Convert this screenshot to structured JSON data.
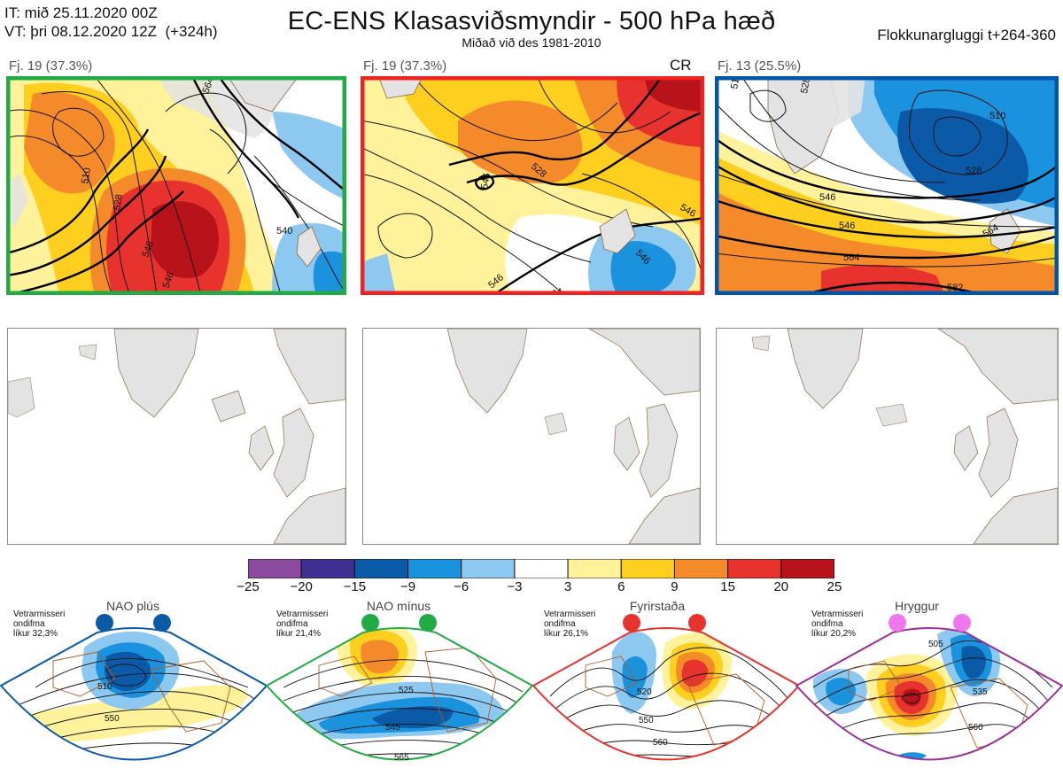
{
  "header": {
    "init_time": "IT: mið 25.11.2020 00Z",
    "valid_time": "VT: þri 08.12.2020 12Z  (+324h)",
    "title": "EC-ENS Klasasviðsmyndir - 500 hPa hæð",
    "subtitle": "Miðað við des 1981-2010",
    "window": "Flokkunargluggi t+264-360"
  },
  "panels": [
    {
      "label": "Fj. 19 (37.3%)",
      "tag": "",
      "frame_color": "#22aa44",
      "contour_labels": [
        "510",
        "528",
        "546",
        "546",
        "564",
        "540"
      ]
    },
    {
      "label": "Fj. 19 (37.3%)",
      "tag": "CR",
      "frame_color": "#ee2222",
      "contour_labels": [
        "528",
        "546",
        "546",
        "546",
        "564",
        "546"
      ]
    },
    {
      "label": "Fj. 13 (25.5%)",
      "tag": "",
      "frame_color": "#0055aa",
      "contour_labels": [
        "510",
        "528",
        "546",
        "546",
        "564",
        "510",
        "528",
        "564",
        "582"
      ]
    }
  ],
  "colorbar": {
    "ticks": [
      "−25",
      "−20",
      "−15",
      "−9",
      "−6",
      "−3",
      "3",
      "6",
      "9",
      "15",
      "20",
      "25"
    ],
    "colors": [
      "#8b4a9e",
      "#3f2f90",
      "#0a5aa8",
      "#1a92dd",
      "#8cc8ef",
      "#ffffff",
      "#fff29b",
      "#ffcf1f",
      "#f58a2a",
      "#e8322d",
      "#b8121a"
    ]
  },
  "regimes": [
    {
      "name": "NAO plús",
      "prob_lines": [
        "Vetrarmisseri",
        "ondifma",
        "líkur 32,3%"
      ],
      "color": "#0a5aa8",
      "contour_labels": [
        "510",
        "550"
      ]
    },
    {
      "name": "NAO mínus",
      "prob_lines": [
        "Vetrarmisseri",
        "ondifma",
        "líkur 21,4%"
      ],
      "color": "#22aa44",
      "contour_labels": [
        "525",
        "545",
        "565"
      ]
    },
    {
      "name": "Fyrirstaða",
      "prob_lines": [
        "Vetrarmisseri",
        "ondifma",
        "líkur 26,1%"
      ],
      "color": "#e8322d",
      "contour_labels": [
        "520",
        "550",
        "560"
      ]
    },
    {
      "name": "Hryggur",
      "prob_lines": [
        "Vetrarmisseri",
        "ondifma",
        "líkur 20,2%"
      ],
      "color": "#ee77ee",
      "contour_labels": [
        "505",
        "535",
        "560"
      ]
    }
  ]
}
